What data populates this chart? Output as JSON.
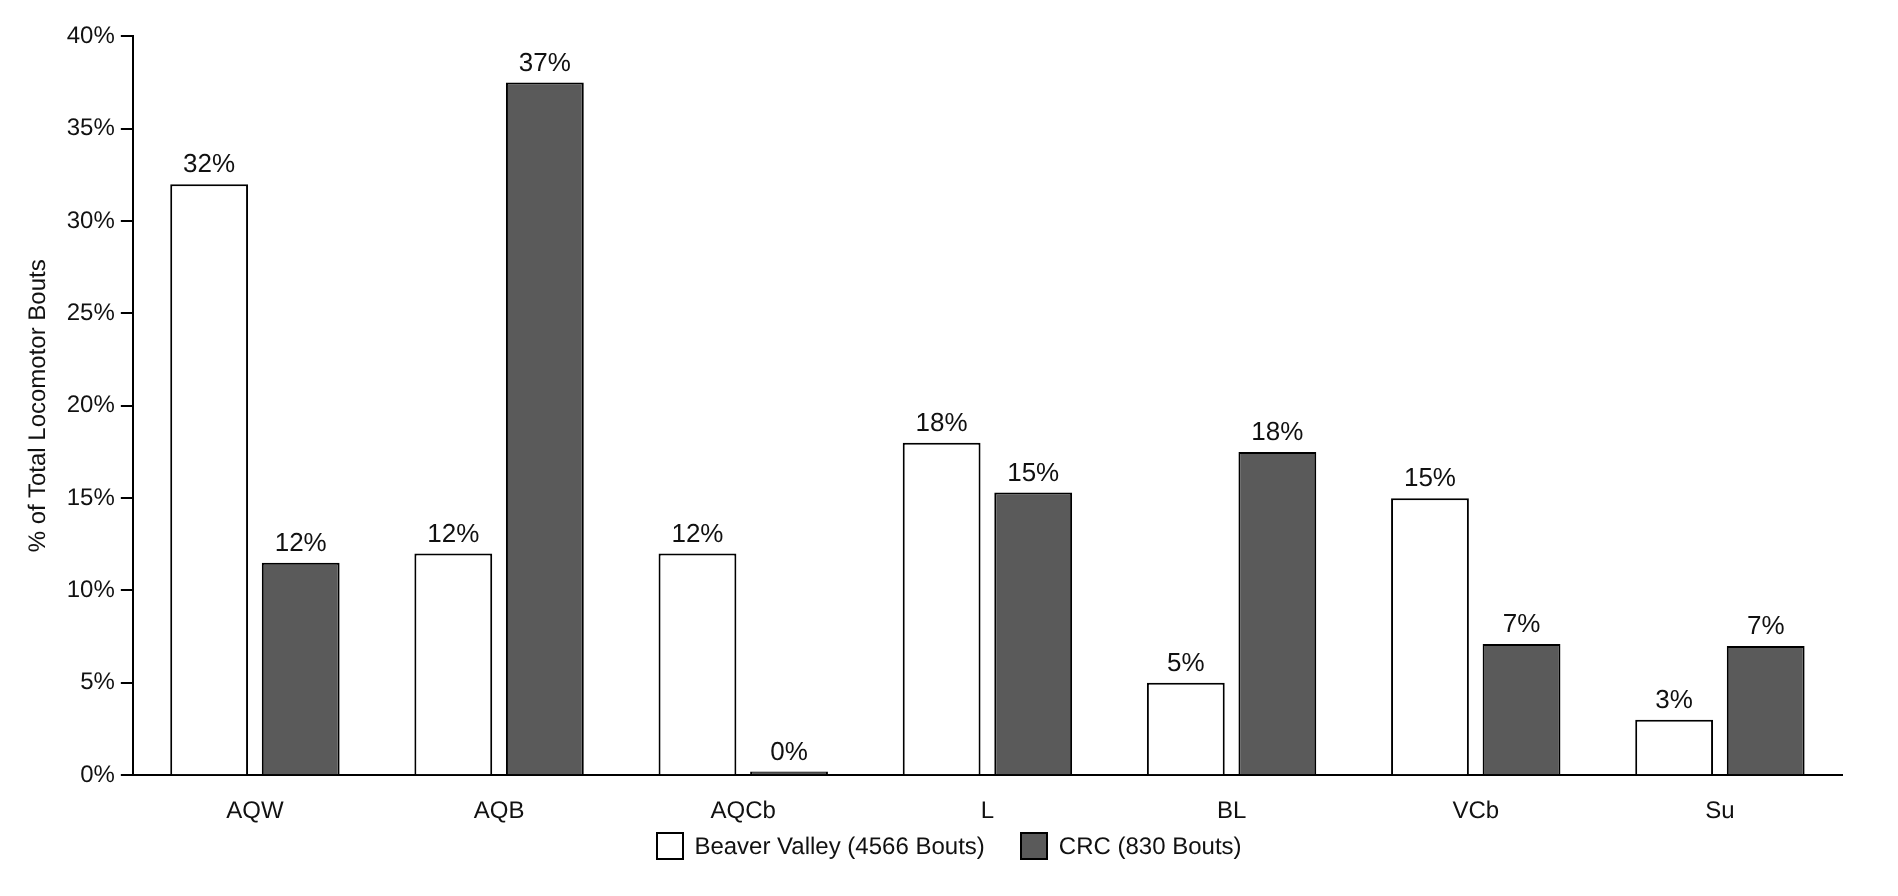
{
  "chart_data": {
    "type": "bar",
    "ylabel": "% of Total Locomotor Bouts",
    "categories": [
      "AQW",
      "AQB",
      "AQCb",
      "L",
      "BL",
      "VCb",
      "Su"
    ],
    "series": [
      {
        "name": "Beaver Valley (4566 Bouts)",
        "color": "#ffffff",
        "values": [
          32,
          12,
          12,
          18,
          5,
          15,
          3
        ],
        "value_labels": [
          "32%",
          "12%",
          "12%",
          "18%",
          "5%",
          "15%",
          "3%"
        ]
      },
      {
        "name": "CRC (830 Bouts)",
        "color": "#5a5a5a",
        "values": [
          11.5,
          37.5,
          0.2,
          15.3,
          17.5,
          7.1,
          7.0
        ],
        "value_labels": [
          "12%",
          "37%",
          "0%",
          "15%",
          "18%",
          "7%",
          "7%"
        ]
      }
    ],
    "ylim": [
      0,
      40
    ],
    "yticks": [
      {
        "value": 0,
        "label": "0%"
      },
      {
        "value": 5,
        "label": "5%"
      },
      {
        "value": 10,
        "label": "10%"
      },
      {
        "value": 15,
        "label": "15%"
      },
      {
        "value": 20,
        "label": "20%"
      },
      {
        "value": 25,
        "label": "25%"
      },
      {
        "value": 30,
        "label": "30%"
      },
      {
        "value": 35,
        "label": "35%"
      },
      {
        "value": 40,
        "label": "40%"
      }
    ],
    "grid": false,
    "legend": "bottom"
  }
}
